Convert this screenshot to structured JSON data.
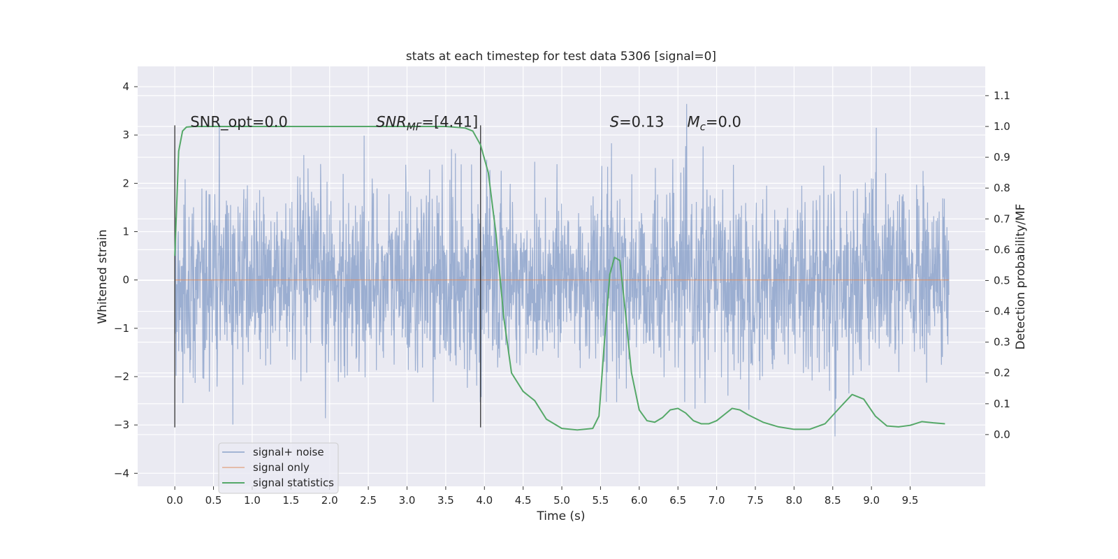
{
  "chart_data": {
    "type": "line",
    "title": "stats at each timestep for test data 5306 [signal=0]",
    "xlabel": "Time (s)",
    "ylabel": "Whitened strain",
    "y2label": "Detection probability/MF",
    "xlim": [
      -0.48,
      10.47
    ],
    "ylim": [
      -4.27,
      4.42
    ],
    "y2lim": [
      -0.168,
      1.195
    ],
    "x_ticks": [
      "0.0",
      "0.5",
      "1.0",
      "1.5",
      "2.0",
      "2.5",
      "3.0",
      "3.5",
      "4.0",
      "4.5",
      "5.0",
      "5.5",
      "6.0",
      "6.5",
      "7.0",
      "7.5",
      "8.0",
      "8.5",
      "9.0",
      "9.5"
    ],
    "y_ticks": [
      "4",
      "3",
      "2",
      "1",
      "0",
      "−1",
      "−2",
      "−3",
      "−4"
    ],
    "y2_ticks": [
      "1.1",
      "1.0",
      "0.9",
      "0.8",
      "0.7",
      "0.6",
      "0.5",
      "0.4",
      "0.3",
      "0.2",
      "0.1",
      "0.0"
    ],
    "grid": true,
    "legend_position": "lower-left",
    "colors": {
      "background": "#eaeaf2",
      "grid": "#ffffff",
      "noise": "#4c72b0",
      "signal": "#dd8452",
      "statistics": "#55a868",
      "vline": "#333333"
    },
    "series": [
      {
        "name": "signal+ noise",
        "x_range": [
          0.0,
          10.0
        ],
        "envelope_typical": [
          -2.0,
          2.0
        ],
        "envelope_peak": [
          -3.9,
          4.05
        ]
      },
      {
        "name": "signal only",
        "x": [
          0.0,
          10.0
        ],
        "values": [
          0.0,
          0.0
        ]
      },
      {
        "name": "signal statistics",
        "axis": "right",
        "x": [
          0.0,
          0.05,
          0.1,
          0.15,
          0.25,
          0.5,
          1.0,
          2.0,
          3.0,
          3.5,
          3.75,
          3.85,
          3.95,
          4.05,
          4.15,
          4.25,
          4.35,
          4.5,
          4.65,
          4.8,
          5.0,
          5.2,
          5.4,
          5.48,
          5.55,
          5.62,
          5.68,
          5.75,
          5.82,
          5.9,
          6.0,
          6.1,
          6.2,
          6.3,
          6.4,
          6.5,
          6.6,
          6.7,
          6.8,
          6.9,
          7.0,
          7.1,
          7.2,
          7.3,
          7.4,
          7.6,
          7.8,
          8.0,
          8.2,
          8.4,
          8.6,
          8.75,
          8.9,
          9.05,
          9.2,
          9.35,
          9.5,
          9.65,
          9.8,
          9.95
        ],
        "values": [
          0.58,
          0.92,
          0.985,
          0.998,
          1.0,
          1.0,
          1.0,
          1.0,
          1.0,
          1.0,
          0.995,
          0.985,
          0.94,
          0.85,
          0.65,
          0.38,
          0.2,
          0.14,
          0.11,
          0.05,
          0.02,
          0.015,
          0.02,
          0.06,
          0.3,
          0.52,
          0.575,
          0.565,
          0.4,
          0.2,
          0.08,
          0.045,
          0.04,
          0.055,
          0.08,
          0.085,
          0.07,
          0.045,
          0.035,
          0.035,
          0.045,
          0.065,
          0.085,
          0.08,
          0.065,
          0.04,
          0.025,
          0.017,
          0.017,
          0.035,
          0.09,
          0.13,
          0.115,
          0.06,
          0.028,
          0.025,
          0.03,
          0.042,
          0.038,
          0.035
        ]
      }
    ],
    "vlines": [
      0.0,
      3.95
    ],
    "annotations": [
      {
        "id": "snr_opt",
        "label": "SNR_opt=0.0",
        "x": 0.2,
        "y": 3.2
      },
      {
        "id": "snr_mf",
        "label_main": "SNR",
        "label_sub": "MF",
        "label_value": "=[4.41]",
        "x": 2.6,
        "y": 3.2
      },
      {
        "id": "s_value",
        "label_var": "S",
        "label_value": "=0.13",
        "x": 5.62,
        "y": 3.2
      },
      {
        "id": "mc_value",
        "label_main": "M",
        "label_sub": "c",
        "label_value": "=0.0",
        "x": 6.62,
        "y": 3.2
      }
    ]
  }
}
